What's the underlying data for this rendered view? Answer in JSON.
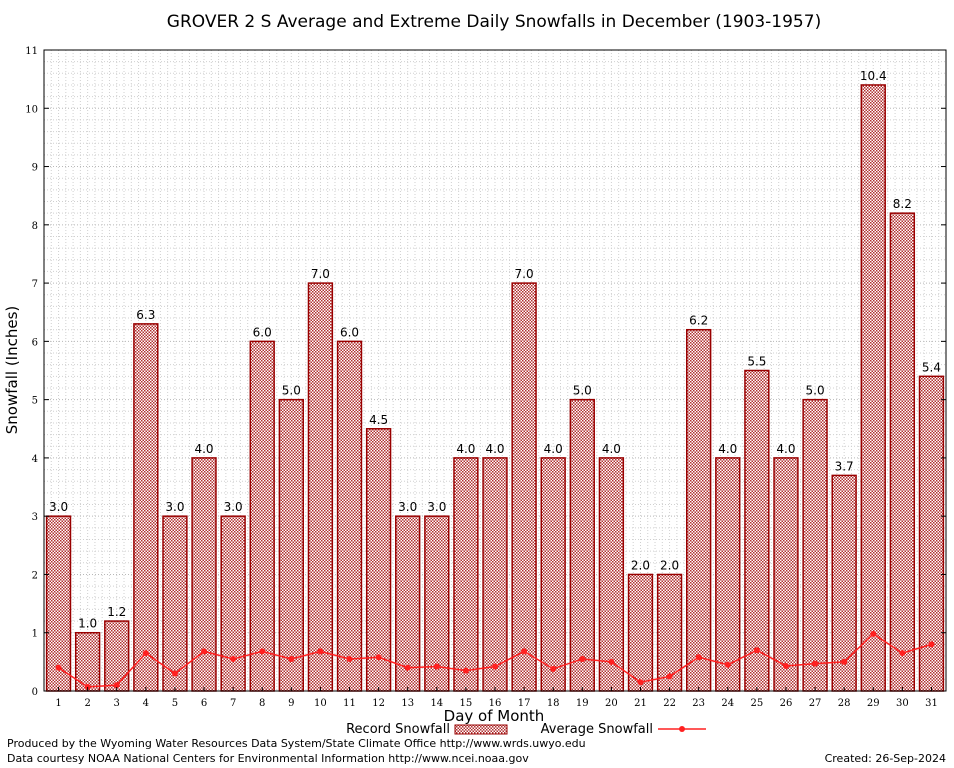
{
  "chart_data": {
    "type": "bar",
    "title": "GROVER 2 S Average and Extreme Daily Snowfalls in December (1903-1957)",
    "xlabel": "Day of Month",
    "ylabel": "Snowfall (Inches)",
    "ylim": [
      0,
      11
    ],
    "yticks": [
      "0",
      "1",
      "2",
      "3",
      "4",
      "5",
      "6",
      "7",
      "8",
      "9",
      "10",
      "11"
    ],
    "categories": [
      "1",
      "2",
      "3",
      "4",
      "5",
      "6",
      "7",
      "8",
      "9",
      "10",
      "11",
      "12",
      "13",
      "14",
      "15",
      "16",
      "17",
      "18",
      "19",
      "20",
      "21",
      "22",
      "23",
      "24",
      "25",
      "26",
      "27",
      "28",
      "29",
      "30",
      "31"
    ],
    "grid": true,
    "legend_position": "bottom",
    "series": [
      {
        "name": "Record Snowfall",
        "kind": "bar",
        "color": "#990000",
        "values": [
          3.0,
          1.0,
          1.2,
          6.3,
          3.0,
          4.0,
          3.0,
          6.0,
          5.0,
          7.0,
          6.0,
          4.5,
          3.0,
          3.0,
          4.0,
          4.0,
          7.0,
          4.0,
          5.0,
          4.0,
          2.0,
          2.0,
          6.2,
          4.0,
          5.5,
          4.0,
          5.0,
          3.7,
          10.4,
          8.2,
          5.4
        ],
        "labels": [
          "3.0",
          "1.0",
          "1.2",
          "6.3",
          "3.0",
          "4.0",
          "3.0",
          "6.0",
          "5.0",
          "7.0",
          "6.0",
          "4.5",
          "3.0",
          "3.0",
          "4.0",
          "4.0",
          "7.0",
          "4.0",
          "5.0",
          "4.0",
          "2.0",
          "2.0",
          "6.2",
          "4.0",
          "5.5",
          "4.0",
          "5.0",
          "3.7",
          "10.4",
          "8.2",
          "5.4"
        ]
      },
      {
        "name": "Average Snowfall",
        "kind": "line",
        "color": "#ff2020",
        "values": [
          0.4,
          0.07,
          0.1,
          0.65,
          0.3,
          0.68,
          0.55,
          0.68,
          0.55,
          0.68,
          0.55,
          0.58,
          0.4,
          0.42,
          0.35,
          0.42,
          0.68,
          0.38,
          0.55,
          0.5,
          0.15,
          0.25,
          0.58,
          0.45,
          0.7,
          0.43,
          0.47,
          0.5,
          0.98,
          0.65,
          0.8
        ]
      }
    ]
  },
  "footer": {
    "line1": "Produced by the Wyoming Water Resources Data System/State Climate Office http://www.wrds.uwyo.edu",
    "line2": "Data courtesy NOAA National Centers for Environmental Information http://www.ncei.noaa.gov",
    "created": "Created: 26-Sep-2024"
  }
}
